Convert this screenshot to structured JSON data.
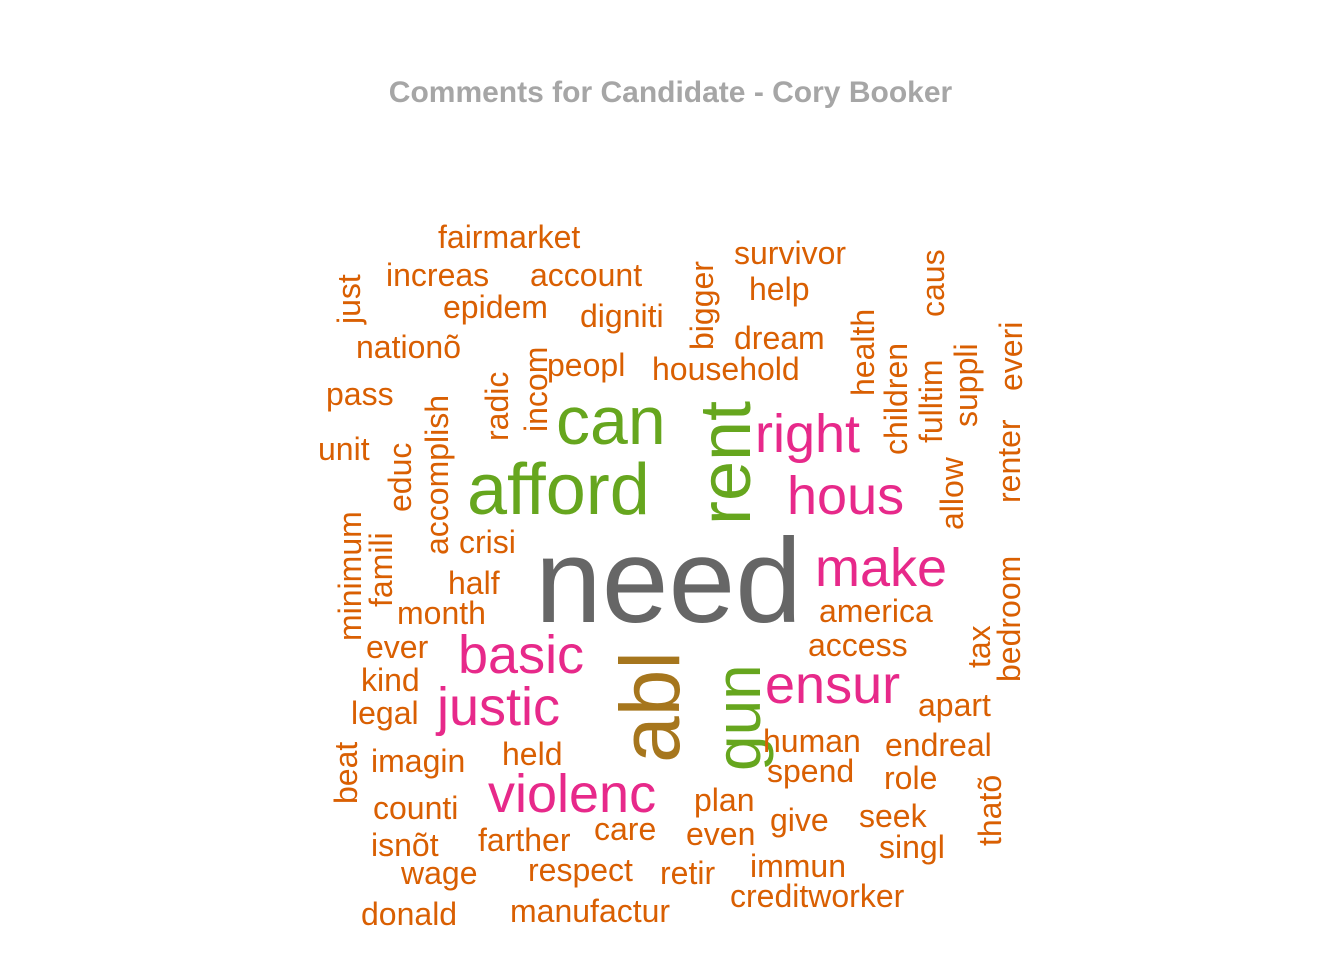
{
  "chart_data": {
    "type": "wordcloud",
    "title": "Comments for Candidate - Cory Booker",
    "colors": {
      "title": "#a6a6a6",
      "tier1": "#666666",
      "tier2": "#a6761d",
      "tier3": "#66a61e",
      "tier4": "#e7298a",
      "tier5": "#d95f02"
    },
    "words": [
      {
        "text": "need",
        "tier": 1
      },
      {
        "text": "abl",
        "tier": 2
      },
      {
        "text": "afford",
        "tier": 3
      },
      {
        "text": "rent",
        "tier": 3
      },
      {
        "text": "can",
        "tier": 3
      },
      {
        "text": "gun",
        "tier": 3
      },
      {
        "text": "hous",
        "tier": 4
      },
      {
        "text": "right",
        "tier": 4
      },
      {
        "text": "make",
        "tier": 4
      },
      {
        "text": "basic",
        "tier": 4
      },
      {
        "text": "ensur",
        "tier": 4
      },
      {
        "text": "justic",
        "tier": 4
      },
      {
        "text": "violenc",
        "tier": 4
      },
      {
        "text": "fairmarket",
        "tier": 5
      },
      {
        "text": "survivor",
        "tier": 5
      },
      {
        "text": "increas",
        "tier": 5
      },
      {
        "text": "account",
        "tier": 5
      },
      {
        "text": "help",
        "tier": 5
      },
      {
        "text": "epidem",
        "tier": 5
      },
      {
        "text": "digniti",
        "tier": 5
      },
      {
        "text": "dream",
        "tier": 5
      },
      {
        "text": "nationõ",
        "tier": 5
      },
      {
        "text": "peopl",
        "tier": 5
      },
      {
        "text": "household",
        "tier": 5
      },
      {
        "text": "pass",
        "tier": 5
      },
      {
        "text": "unit",
        "tier": 5
      },
      {
        "text": "crisi",
        "tier": 5
      },
      {
        "text": "half",
        "tier": 5
      },
      {
        "text": "month",
        "tier": 5
      },
      {
        "text": "america",
        "tier": 5
      },
      {
        "text": "access",
        "tier": 5
      },
      {
        "text": "ever",
        "tier": 5
      },
      {
        "text": "kind",
        "tier": 5
      },
      {
        "text": "legal",
        "tier": 5
      },
      {
        "text": "apart",
        "tier": 5
      },
      {
        "text": "human",
        "tier": 5
      },
      {
        "text": "endreal",
        "tier": 5
      },
      {
        "text": "imagin",
        "tier": 5
      },
      {
        "text": "held",
        "tier": 5
      },
      {
        "text": "spend",
        "tier": 5
      },
      {
        "text": "role",
        "tier": 5
      },
      {
        "text": "counti",
        "tier": 5
      },
      {
        "text": "plan",
        "tier": 5
      },
      {
        "text": "give",
        "tier": 5
      },
      {
        "text": "seek",
        "tier": 5
      },
      {
        "text": "isnõt",
        "tier": 5
      },
      {
        "text": "farther",
        "tier": 5
      },
      {
        "text": "care",
        "tier": 5
      },
      {
        "text": "even",
        "tier": 5
      },
      {
        "text": "singl",
        "tier": 5
      },
      {
        "text": "wage",
        "tier": 5
      },
      {
        "text": "respect",
        "tier": 5
      },
      {
        "text": "retir",
        "tier": 5
      },
      {
        "text": "immun",
        "tier": 5
      },
      {
        "text": "creditworker",
        "tier": 5
      },
      {
        "text": "donald",
        "tier": 5
      },
      {
        "text": "manufactur",
        "tier": 5
      },
      {
        "text": "just",
        "tier": 5
      },
      {
        "text": "bigger",
        "tier": 5
      },
      {
        "text": "caus",
        "tier": 5
      },
      {
        "text": "health",
        "tier": 5
      },
      {
        "text": "children",
        "tier": 5
      },
      {
        "text": "fulltim",
        "tier": 5
      },
      {
        "text": "suppli",
        "tier": 5
      },
      {
        "text": "everi",
        "tier": 5
      },
      {
        "text": "radic",
        "tier": 5
      },
      {
        "text": "incom",
        "tier": 5
      },
      {
        "text": "accomplish",
        "tier": 5
      },
      {
        "text": "educ",
        "tier": 5
      },
      {
        "text": "minimum",
        "tier": 5
      },
      {
        "text": "famili",
        "tier": 5
      },
      {
        "text": "allow",
        "tier": 5
      },
      {
        "text": "renter",
        "tier": 5
      },
      {
        "text": "bedroom",
        "tier": 5
      },
      {
        "text": "tax",
        "tier": 5
      },
      {
        "text": "beat",
        "tier": 5
      },
      {
        "text": "thatõ",
        "tier": 5
      }
    ]
  }
}
